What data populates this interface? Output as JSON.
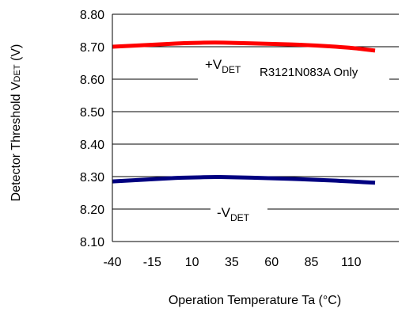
{
  "chart_data": {
    "type": "line",
    "xlabel": "Operation Temperature Ta (°C)",
    "ylabel": {
      "main": "Detector Threshold V",
      "sub": "DET",
      "unit": " (V)"
    },
    "x_ticks": [
      -40,
      -15,
      10,
      35,
      60,
      85,
      110
    ],
    "xlim": [
      -40,
      125
    ],
    "y_ticks": [
      "8.80",
      "8.70",
      "8.60",
      "8.50",
      "8.40",
      "8.30",
      "8.20",
      "8.10"
    ],
    "ylim": [
      8.1,
      8.8
    ],
    "grid": {
      "horizontal": true,
      "vertical": false
    },
    "series": [
      {
        "name": "+VDET",
        "color": "#ff0000",
        "x": [
          -40,
          -15,
          0,
          10,
          25,
          35,
          60,
          85,
          110,
          125
        ],
        "y": [
          8.7,
          8.706,
          8.71,
          8.712,
          8.713,
          8.712,
          8.709,
          8.705,
          8.697,
          8.688
        ]
      },
      {
        "name": "-VDET",
        "color": "#000080",
        "x": [
          -40,
          -15,
          0,
          10,
          25,
          35,
          60,
          85,
          110,
          125
        ],
        "y": [
          8.285,
          8.292,
          8.296,
          8.297,
          8.299,
          8.298,
          8.295,
          8.291,
          8.285,
          8.281
        ]
      }
    ],
    "annotations": [
      {
        "id": "plus",
        "prefix": "+V",
        "sub": "DET"
      },
      {
        "id": "minus",
        "prefix": "-V",
        "sub": "DET"
      },
      {
        "id": "note",
        "text": "R3121N083A Only"
      }
    ]
  }
}
